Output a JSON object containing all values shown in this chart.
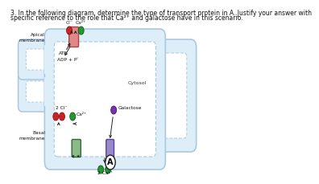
{
  "title_line1": "3. In the following diagram, determine the type of transport protein in A. Justify your answer with",
  "title_line2": "specific reference to the role that Ca²⁺ and galactose have in this scenario.",
  "bg_color": "#ffffff",
  "cell_fill": "#ddeef8",
  "membrane_outer_color": "#aac8e0",
  "membrane_inner_color": "#c8dff0",
  "apical_label": "Apical\nmembrane",
  "basal_label": "Basal\nmembrane",
  "cytosol_label": "Cytosol",
  "galactose_label": "Galactose",
  "atp_label": "ATP",
  "adppi_label": "ADP + Pᴵ",
  "cl_label": "Cl⁻",
  "ca_label": "Ca²⁺",
  "two_cl_label": "2 Cl⁻",
  "two_ca_label": "2 Ca²⁺",
  "protein_a_label": "A",
  "cl_color": "#cc2222",
  "ca_color": "#229933",
  "galactose_color": "#7733aa",
  "pump_color_apical": "#e08888",
  "pump_color_basal": "#88bb88",
  "protein_a_color": "#9988cc",
  "font_size_title": 5.5,
  "font_size_label": 4.5,
  "font_size_small": 4.2,
  "font_size_A": 7
}
